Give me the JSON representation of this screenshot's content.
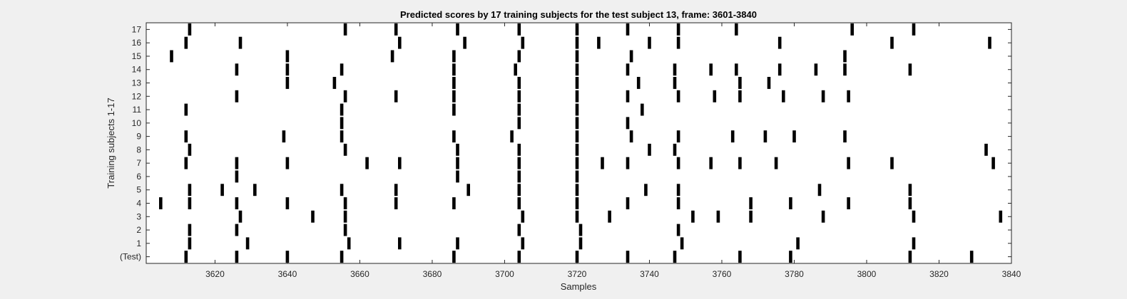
{
  "chart_data": {
    "type": "raster",
    "title": "Predicted scores by 17 training subjects for the test subject 13, frame: 3601-3840",
    "xlabel": "Samples",
    "ylabel": "Training subjects 1-17",
    "xlim": [
      3601,
      3840
    ],
    "xticks": [
      3620,
      3640,
      3660,
      3680,
      3700,
      3720,
      3740,
      3760,
      3780,
      3800,
      3820,
      3840
    ],
    "grid": false,
    "rows": [
      {
        "label": "(Test)",
        "events": [
          3612,
          3626,
          3640,
          3655,
          3686,
          3704,
          3720,
          3734,
          3747,
          3765,
          3779,
          3812,
          3829
        ]
      },
      {
        "label": "1",
        "events": [
          3613,
          3629,
          3657,
          3671,
          3687,
          3705,
          3721,
          3749,
          3781,
          3813
        ]
      },
      {
        "label": "2",
        "events": [
          3613,
          3626,
          3656,
          3704,
          3721,
          3748
        ]
      },
      {
        "label": "3",
        "events": [
          3627,
          3647,
          3656,
          3705,
          3720,
          3729,
          3752,
          3759,
          3768,
          3788,
          3813,
          3837
        ]
      },
      {
        "label": "4",
        "events": [
          3605,
          3613,
          3626,
          3640,
          3656,
          3670,
          3686,
          3704,
          3720,
          3734,
          3748,
          3768,
          3779,
          3795,
          3812
        ]
      },
      {
        "label": "5",
        "events": [
          3613,
          3622,
          3631,
          3655,
          3670,
          3690,
          3704,
          3720,
          3739,
          3748,
          3787,
          3812
        ]
      },
      {
        "label": "6",
        "events": [
          3626,
          3687,
          3704,
          3720
        ]
      },
      {
        "label": "7",
        "events": [
          3612,
          3626,
          3640,
          3662,
          3671,
          3687,
          3704,
          3720,
          3727,
          3734,
          3748,
          3757,
          3765,
          3775,
          3795,
          3807,
          3835
        ]
      },
      {
        "label": "8",
        "events": [
          3613,
          3656,
          3687,
          3704,
          3720,
          3740,
          3747,
          3833
        ]
      },
      {
        "label": "9",
        "events": [
          3612,
          3639,
          3655,
          3686,
          3702,
          3720,
          3735,
          3748,
          3763,
          3772,
          3780,
          3794
        ]
      },
      {
        "label": "10",
        "events": [
          3655,
          3704,
          3720,
          3734
        ]
      },
      {
        "label": "11",
        "events": [
          3612,
          3655,
          3686,
          3704,
          3720,
          3738
        ]
      },
      {
        "label": "12",
        "events": [
          3626,
          3656,
          3670,
          3686,
          3704,
          3720,
          3734,
          3748,
          3758,
          3765,
          3777,
          3788,
          3795
        ]
      },
      {
        "label": "13",
        "events": [
          3640,
          3653,
          3686,
          3704,
          3720,
          3737,
          3747,
          3765,
          3773
        ]
      },
      {
        "label": "14",
        "events": [
          3626,
          3640,
          3655,
          3686,
          3703,
          3720,
          3734,
          3747,
          3757,
          3764,
          3776,
          3786,
          3794,
          3812
        ]
      },
      {
        "label": "15",
        "events": [
          3608,
          3640,
          3669,
          3686,
          3704,
          3720,
          3735,
          3794
        ]
      },
      {
        "label": "16",
        "events": [
          3612,
          3627,
          3671,
          3689,
          3705,
          3720,
          3726,
          3740,
          3748,
          3776,
          3807,
          3834
        ]
      },
      {
        "label": "17",
        "events": [
          3613,
          3656,
          3670,
          3687,
          3704,
          3720,
          3734,
          3748,
          3764,
          3796,
          3813
        ]
      }
    ]
  }
}
